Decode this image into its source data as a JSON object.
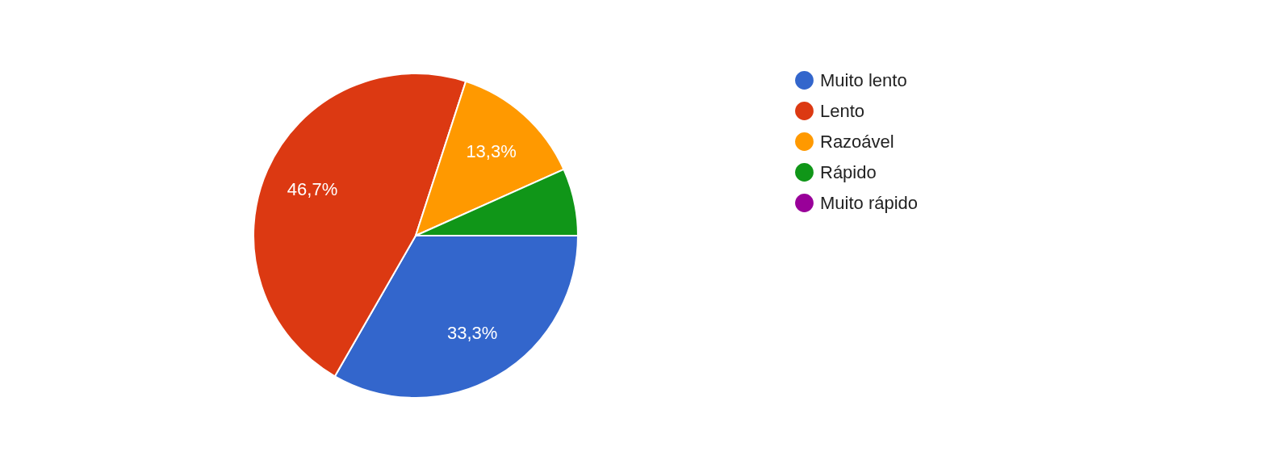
{
  "chart_data": {
    "type": "pie",
    "categories": [
      "Muito lento",
      "Lento",
      "Razoável",
      "Rápido",
      "Muito rápido"
    ],
    "values": [
      33.3,
      46.7,
      13.3,
      6.7,
      0
    ],
    "colors": [
      "#3366cc",
      "#dc3912",
      "#ff9900",
      "#109618",
      "#990099"
    ],
    "value_labels": [
      "33,3%",
      "46,7%",
      "13,3%",
      null,
      null
    ],
    "legend": "right"
  }
}
